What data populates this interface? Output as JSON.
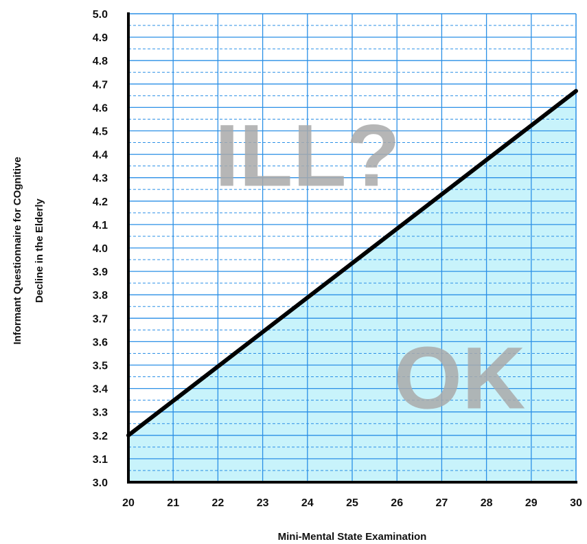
{
  "chart_data": {
    "type": "line",
    "xlabel": "Mini-Mental State Examination",
    "ylabel_line1": "Informant Questionnaire for COgnitive",
    "ylabel_line2": "Decline in the Elderly",
    "xlim": [
      20,
      30
    ],
    "ylim": [
      3.0,
      5.0
    ],
    "x_ticks": [
      "20",
      "21",
      "22",
      "23",
      "24",
      "25",
      "26",
      "27",
      "28",
      "29",
      "30"
    ],
    "y_ticks": [
      "3.0",
      "3.1",
      "3.2",
      "3.3",
      "3.4",
      "3.5",
      "3.6",
      "3.7",
      "3.8",
      "3.9",
      "4.0",
      "4.1",
      "4.2",
      "4.3",
      "4.4",
      "4.5",
      "4.6",
      "4.7",
      "4.8",
      "4.9",
      "5.0"
    ],
    "grid": true,
    "series": [
      {
        "x": [
          20,
          30
        ],
        "y": [
          3.2,
          4.67
        ]
      }
    ],
    "annotations": [
      {
        "text": "ILL?",
        "x": 24,
        "y": 4.4
      },
      {
        "text": "OK",
        "x": 27.4,
        "y": 3.45
      }
    ],
    "colors": {
      "shaded_region": "#c8f3fb",
      "grid_line": "#2a8fe6",
      "boundary_line": "#000000",
      "region_label": "#a9a9a9"
    }
  }
}
